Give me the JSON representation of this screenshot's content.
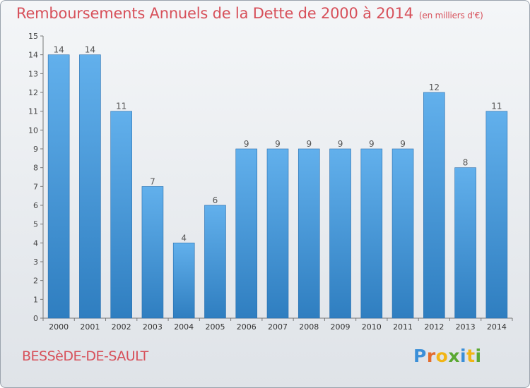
{
  "chart_data": {
    "type": "bar",
    "title": "Remboursements Annuels de la Dette de 2000 à 2014",
    "unit_label": "(en milliers d'€)",
    "categories": [
      "2000",
      "2001",
      "2002",
      "2003",
      "2004",
      "2005",
      "2006",
      "2007",
      "2008",
      "2009",
      "2010",
      "2011",
      "2012",
      "2013",
      "2014"
    ],
    "values": [
      14,
      14,
      11,
      7,
      4,
      6,
      9,
      9,
      9,
      9,
      9,
      9,
      12,
      8,
      11
    ],
    "data_labels": [
      "14",
      "14",
      "11",
      "7",
      "4",
      "6",
      "9",
      "9",
      "9",
      "9",
      "9",
      "9",
      "12",
      "8",
      "11"
    ],
    "yticks": [
      "0",
      "1",
      "2",
      "3",
      "4",
      "5",
      "6",
      "7",
      "8",
      "9",
      "10",
      "11",
      "12",
      "13",
      "14",
      "15"
    ],
    "ylim": [
      0,
      15
    ],
    "grid": false,
    "bar_color_top": "#62b0ec",
    "bar_color_bottom": "#2f7ec0",
    "label_color": "#555555"
  },
  "footer": {
    "commune": "BESSèDE-DE-SAULT",
    "brand_letters": [
      "P",
      "r",
      "o",
      "x",
      "i",
      "t",
      "i"
    ],
    "brand_colors": [
      "#3b8fd8",
      "#e36c2e",
      "#f2b515",
      "#5aa832",
      "#3b8fd8",
      "#f2b515",
      "#5aa832"
    ]
  }
}
